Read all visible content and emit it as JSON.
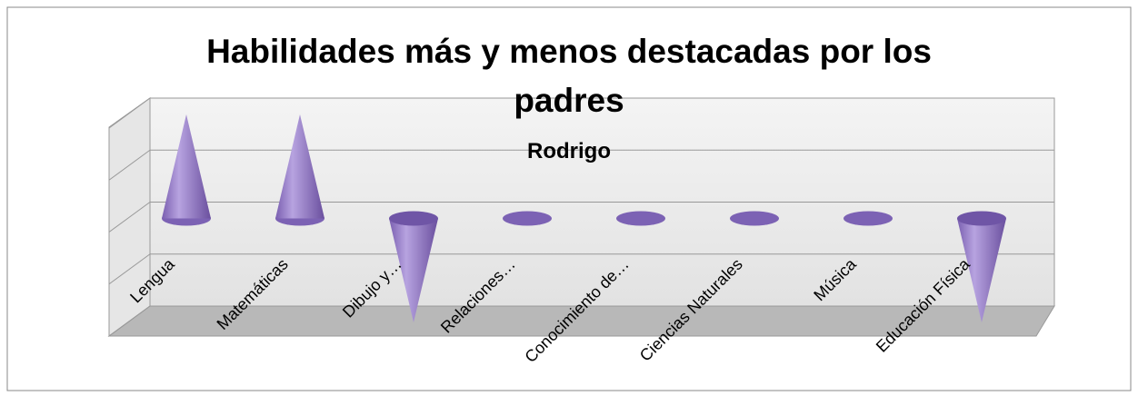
{
  "chart_data": {
    "type": "cone3d",
    "title": "Habilidades más y menos destacadas por los padres",
    "subtitle": "Rodrigo",
    "categories": [
      "Lengua",
      "Matemáticas",
      "Dibujo y…",
      "Relaciones…",
      "Conocimiento de…",
      "Ciencias Naturales",
      "Música",
      "Educación Física"
    ],
    "values": [
      2,
      2,
      -2,
      0,
      0,
      0,
      0,
      -2
    ],
    "color": "#8e72c0",
    "ylim": [
      -2,
      2
    ],
    "yticks": [
      -2,
      -1,
      0,
      1,
      2
    ],
    "grid": true
  }
}
